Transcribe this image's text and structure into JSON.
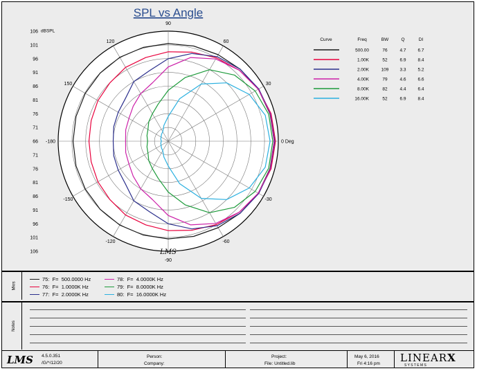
{
  "chart_data": {
    "type": "polar",
    "title": "SPL vs Angle",
    "radial_unit": "dBSPL",
    "radial_ticks": [
      "106",
      "101",
      "96",
      "91",
      "86",
      "81",
      "76",
      "71",
      "66",
      "71",
      "76",
      "81",
      "86",
      "91",
      "96",
      "101",
      "106"
    ],
    "radial_range": [
      66,
      106
    ],
    "angle_labels": [
      {
        "deg": 90,
        "text": "90"
      },
      {
        "deg": 60,
        "text": "60"
      },
      {
        "deg": 30,
        "text": "30"
      },
      {
        "deg": 0,
        "text": "0 Deg"
      },
      {
        "deg": -30,
        "text": "-30"
      },
      {
        "deg": -60,
        "text": "-60"
      },
      {
        "deg": -90,
        "text": "-90"
      },
      {
        "deg": -120,
        "text": "-120"
      },
      {
        "deg": -150,
        "text": "-150"
      },
      {
        "deg": 180,
        "text": "-180"
      },
      {
        "deg": 150,
        "text": "150"
      },
      {
        "deg": 120,
        "text": "120"
      }
    ],
    "legend_headers": [
      "Curve",
      "Freq",
      "BW",
      "Q",
      "DI"
    ],
    "series": [
      {
        "freq": "500.00",
        "bw": "76",
        "q": "4.7",
        "di": "6.7",
        "color": "#1a1a1a",
        "angles": [
          0,
          15,
          30,
          45,
          60,
          75,
          90,
          105,
          120,
          135,
          150,
          165,
          180
        ],
        "radius": [
          104.5,
          104.3,
          103.8,
          103.0,
          102.3,
          101.8,
          101.5,
          101.3,
          101.2,
          101.0,
          100.8,
          100.7,
          100.6
        ]
      },
      {
        "freq": "1.00K",
        "bw": "52",
        "q": "6.9",
        "di": "8.4",
        "color": "#e8003c",
        "angles": [
          0,
          15,
          30,
          45,
          60,
          75,
          90,
          105,
          120,
          135,
          150,
          165,
          180
        ],
        "radius": [
          105.0,
          104.7,
          103.8,
          102.5,
          101.0,
          99.5,
          98.5,
          97.5,
          97.0,
          96.0,
          95.5,
          95.0,
          94.8
        ]
      },
      {
        "freq": "2.00K",
        "bw": "109",
        "q": "3.3",
        "di": "5.2",
        "color": "#2b2f8c",
        "angles": [
          0,
          15,
          30,
          45,
          60,
          75,
          90,
          105,
          120,
          135,
          150,
          165,
          180
        ],
        "radius": [
          104.7,
          104.5,
          104.0,
          103.0,
          101.5,
          99.0,
          96.0,
          92.5,
          91.0,
          88.0,
          87.0,
          86.5,
          86.0
        ]
      },
      {
        "freq": "4.00K",
        "bw": "79",
        "q": "4.6",
        "di": "6.6",
        "color": "#cc1fa8",
        "angles": [
          0,
          15,
          30,
          45,
          60,
          75,
          90,
          105,
          120,
          135,
          150,
          165,
          180
        ],
        "radius": [
          104.5,
          104.5,
          103.8,
          102.5,
          100.5,
          97.5,
          93.0,
          88.0,
          86.0,
          84.0,
          82.5,
          82.0,
          81.5
        ]
      },
      {
        "freq": "8.00K",
        "bw": "82",
        "q": "4.4",
        "di": "6.4",
        "color": "#1c9a3a",
        "angles": [
          0,
          15,
          30,
          45,
          60,
          75,
          90,
          105,
          120,
          135,
          150,
          165,
          180
        ],
        "radius": [
          104.0,
          103.8,
          102.5,
          100.0,
          96.0,
          90.0,
          84.5,
          80.0,
          77.5,
          76.0,
          74.5,
          74.0,
          73.5
        ]
      },
      {
        "freq": "16.00K",
        "bw": "52",
        "q": "6.9",
        "di": "8.4",
        "color": "#2ab0e0",
        "angles": [
          0,
          15,
          30,
          45,
          60,
          75,
          90,
          105,
          120,
          135,
          150,
          165,
          180
        ],
        "radius": [
          103.0,
          102.5,
          100.0,
          96.0,
          90.0,
          82.0,
          75.0,
          72.0,
          70.0,
          69.5,
          69.0,
          68.8,
          68.5
        ]
      }
    ]
  },
  "markers": {
    "section_label": "Mkrs",
    "items": [
      {
        "text": "75:  F=  500.0000 Hz",
        "color": "#1a1a1a"
      },
      {
        "text": "76:  F=  1.0000K Hz",
        "color": "#e8003c"
      },
      {
        "text": "77:  F=  2.0000K Hz",
        "color": "#2b2f8c"
      },
      {
        "text": "78:  F=  4.0000K Hz",
        "color": "#cc1fa8"
      },
      {
        "text": "79:  F=  8.0000K Hz",
        "color": "#1c9a3a"
      },
      {
        "text": "80:  F=  16.0000K Hz",
        "color": "#2ab0e0"
      }
    ]
  },
  "notes": {
    "section_label": "Notes"
  },
  "watermark": "LMS",
  "footer": {
    "logo": "LMS",
    "version": "4.5.0.351",
    "version_sub": "/G/^/12/20",
    "person_label": "Person:",
    "company_label": "Company:",
    "project_label": "Project:",
    "file_label": "File: Untitled.lib",
    "date": "May 6, 2016",
    "time": "Fri  4:16 pm",
    "brand": "LINEAR",
    "brand_x": "X",
    "brand_sub": "S  Y  S  T  E  M  S"
  }
}
